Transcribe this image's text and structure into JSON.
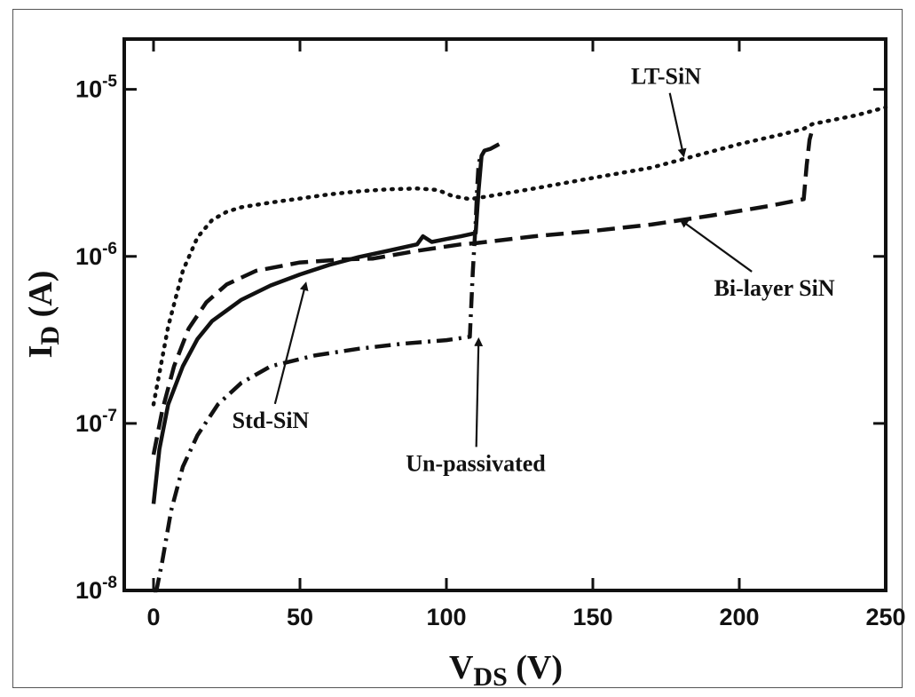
{
  "chart_data": {
    "type": "line",
    "title": "",
    "xlabel": {
      "main": "V",
      "sub": "DS",
      "unit": " (V)"
    },
    "ylabel": {
      "main": "I",
      "sub": "D",
      "unit": " (A)"
    },
    "xlim": [
      -10,
      250
    ],
    "ylim": [
      1e-08,
      2e-05
    ],
    "yscale": "log",
    "grid": false,
    "x_ticks": [
      0,
      50,
      100,
      150,
      200,
      250
    ],
    "x_tick_labels": [
      "0",
      "50",
      "100",
      "150",
      "200",
      "250"
    ],
    "y_ticks": [
      1e-08,
      1e-07,
      1e-06,
      1e-05
    ],
    "y_tick_labels": [
      {
        "base": "10",
        "exp": "-8"
      },
      {
        "base": "10",
        "exp": "-7"
      },
      {
        "base": "10",
        "exp": "-6"
      },
      {
        "base": "10",
        "exp": "-5"
      }
    ],
    "series": [
      {
        "name": "LT-SiN",
        "style": "dotted",
        "color": "#111111",
        "x": [
          0,
          5,
          10,
          15,
          20,
          25,
          30,
          40,
          50,
          60,
          70,
          80,
          90,
          97,
          102,
          108,
          115,
          130,
          150,
          170,
          185,
          200,
          215,
          222,
          225,
          240,
          250
        ],
        "y": [
          1.3e-07,
          3.8e-07,
          8.2e-07,
          1.3e-06,
          1.65e-06,
          1.85e-06,
          1.97e-06,
          2.1e-06,
          2.22e-06,
          2.35e-06,
          2.45e-06,
          2.52e-06,
          2.55e-06,
          2.5e-06,
          2.3e-06,
          2.2e-06,
          2.3e-06,
          2.55e-06,
          2.95e-06,
          3.4e-06,
          4e-06,
          4.7e-06,
          5.4e-06,
          5.8e-06,
          6.2e-06,
          7e-06,
          7.8e-06
        ]
      },
      {
        "name": "Bi-layer SiN",
        "style": "dashed",
        "color": "#111111",
        "x": [
          0,
          3,
          7,
          12,
          18,
          25,
          35,
          50,
          65,
          75,
          90,
          105,
          110,
          130,
          150,
          170,
          190,
          210,
          222,
          223,
          224,
          225
        ],
        "y": [
          6.5e-08,
          1.2e-07,
          2.2e-07,
          3.7e-07,
          5.3e-07,
          6.8e-07,
          8.2e-07,
          9.2e-07,
          9.6e-07,
          9.7e-07,
          1.08e-06,
          1.18e-06,
          1.2e-06,
          1.32e-06,
          1.42e-06,
          1.55e-06,
          1.75e-06,
          2e-06,
          2.2e-06,
          3.5e-06,
          5e-06,
          5.8e-06
        ]
      },
      {
        "name": "Std-SiN",
        "style": "solid",
        "color": "#111111",
        "x": [
          0,
          2,
          5,
          10,
          15,
          20,
          30,
          40,
          50,
          60,
          70,
          80,
          90,
          92,
          95,
          100,
          105,
          110,
          111,
          112,
          113,
          115,
          117,
          118
        ],
        "y": [
          3.3e-08,
          7e-08,
          1.3e-07,
          2.2e-07,
          3.2e-07,
          4.1e-07,
          5.5e-07,
          6.7e-07,
          7.8e-07,
          8.9e-07,
          9.9e-07,
          1.08e-06,
          1.18e-06,
          1.32e-06,
          1.22e-06,
          1.27e-06,
          1.32e-06,
          1.38e-06,
          2.5e-06,
          4e-06,
          4.3e-06,
          4.4e-06,
          4.6e-06,
          4.7e-06
        ]
      },
      {
        "name": "Un-passivated",
        "style": "dashdot",
        "color": "#111111",
        "x": [
          0,
          1,
          3,
          6,
          10,
          15,
          22,
          30,
          40,
          55,
          70,
          85,
          100,
          108,
          109,
          110,
          110.5,
          111,
          112
        ],
        "y": [
          1e-08,
          1e-08,
          1.5e-08,
          3e-08,
          5.5e-08,
          8.5e-08,
          1.3e-07,
          1.75e-07,
          2.2e-07,
          2.55e-07,
          2.8e-07,
          3e-07,
          3.15e-07,
          3.3e-07,
          8e-07,
          1.6e-06,
          2.6e-06,
          3.6e-06,
          4.1e-06
        ]
      }
    ],
    "annotations": [
      {
        "text": "LT-SiN",
        "text_x": 175,
        "text_y": 1.2e-05,
        "arrow_to_x": 181,
        "arrow_to_y": 4e-06
      },
      {
        "text": "Bi-layer SiN",
        "text_x": 212,
        "text_y": 6.5e-07,
        "arrow_to_x": 180,
        "arrow_to_y": 1.65e-06
      },
      {
        "text": "Std-SiN",
        "text_x": 40,
        "text_y": 1.05e-07,
        "arrow_to_x": 52,
        "arrow_to_y": 6.9e-07
      },
      {
        "text": "Un-passivated",
        "text_x": 110,
        "text_y": 5.8e-08,
        "arrow_to_x": 111,
        "arrow_to_y": 3.2e-07
      }
    ]
  }
}
